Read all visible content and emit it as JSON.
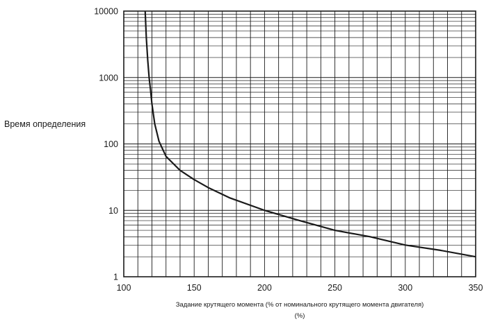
{
  "chart_data": {
    "type": "line",
    "title": "",
    "ylabel": "Время определения",
    "xlabel": "Задание крутящего момента (% от номинального крутящего момента двигателя)",
    "xlabel_unit": "(%)",
    "xlim": [
      100,
      350
    ],
    "ylim": [
      1,
      10000
    ],
    "yscale": "log",
    "xticks": [
      100,
      150,
      200,
      250,
      300,
      350
    ],
    "xtick_labels": [
      "100",
      "150",
      "200",
      "250",
      "300",
      "350"
    ],
    "yticks": [
      1,
      10,
      100,
      1000,
      10000
    ],
    "ytick_labels": [
      "1",
      "10",
      "100",
      "1000",
      "10000"
    ],
    "grid": true,
    "series": [
      {
        "x": [
          115.2,
          116,
          117,
          118,
          119,
          120,
          122,
          125,
          130,
          140,
          150,
          160,
          175,
          200,
          225,
          250,
          275,
          300,
          325,
          350
        ],
        "y": [
          10000,
          4000,
          1850,
          1000,
          650,
          400,
          200,
          110,
          65,
          40,
          29,
          22,
          15.5,
          10,
          7,
          5,
          4,
          3,
          2.5,
          2
        ]
      }
    ]
  }
}
